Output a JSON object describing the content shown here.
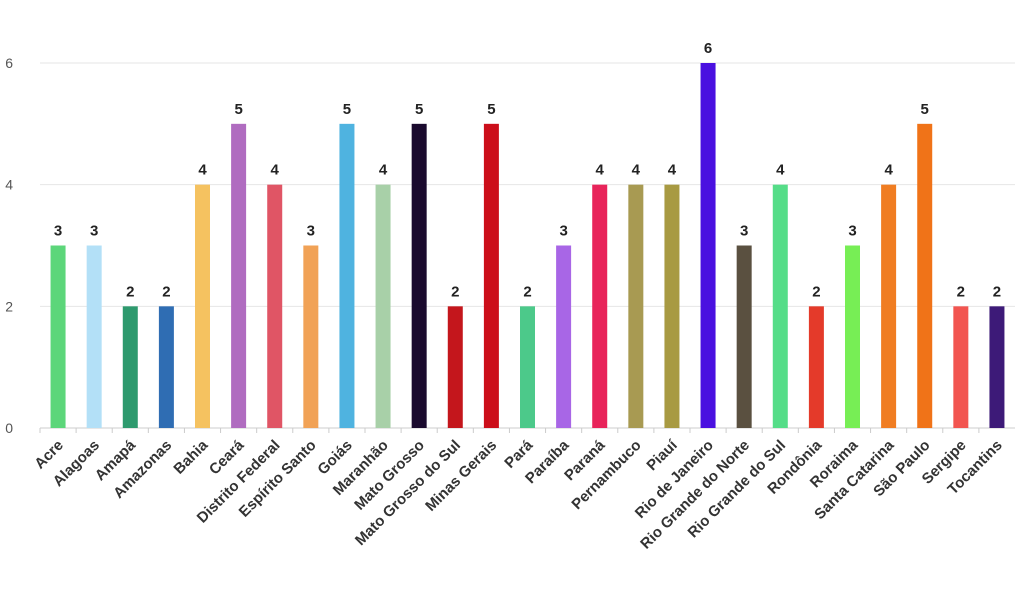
{
  "chart_data": {
    "type": "bar",
    "title": "",
    "xlabel": "",
    "ylabel": "",
    "ylim": [
      0,
      6
    ],
    "yticks": [
      0,
      2,
      4,
      6
    ],
    "grid": true,
    "legend": "none",
    "categories": [
      "Acre",
      "Alagoas",
      "Amapá",
      "Amazonas",
      "Bahia",
      "Ceará",
      "Distrito Federal",
      "Espírito Santo",
      "Goiás",
      "Maranhão",
      "Mato Grosso",
      "Mato Grosso do Sul",
      "Minas Gerais",
      "Pará",
      "Paraíba",
      "Paraná",
      "Pernambuco",
      "Piauí",
      "Rio de Janeiro",
      "Rio Grande do Norte",
      "Rio Grande do Sul",
      "Rondônia",
      "Roraima",
      "Santa Catarina",
      "São Paulo",
      "Sergipe",
      "Tocantins"
    ],
    "values": [
      3,
      3,
      2,
      2,
      4,
      5,
      4,
      3,
      5,
      4,
      5,
      2,
      5,
      2,
      3,
      4,
      4,
      4,
      6,
      3,
      4,
      2,
      3,
      4,
      5,
      2,
      2
    ],
    "colors": [
      "#5cd67a",
      "#b3e0f7",
      "#2e9a6e",
      "#2f6db3",
      "#f5c260",
      "#b06cc0",
      "#e05565",
      "#f1a256",
      "#4fb3e0",
      "#a8d0a8",
      "#1a0a2e",
      "#c4161c",
      "#cc0e1a",
      "#4cc98a",
      "#a866e6",
      "#e8245a",
      "#a89a52",
      "#a89a42",
      "#4a10e0",
      "#5a5040",
      "#55dd88",
      "#e43a2a",
      "#77ee55",
      "#f07d22",
      "#f07318",
      "#f25550",
      "#3d1a78"
    ]
  }
}
